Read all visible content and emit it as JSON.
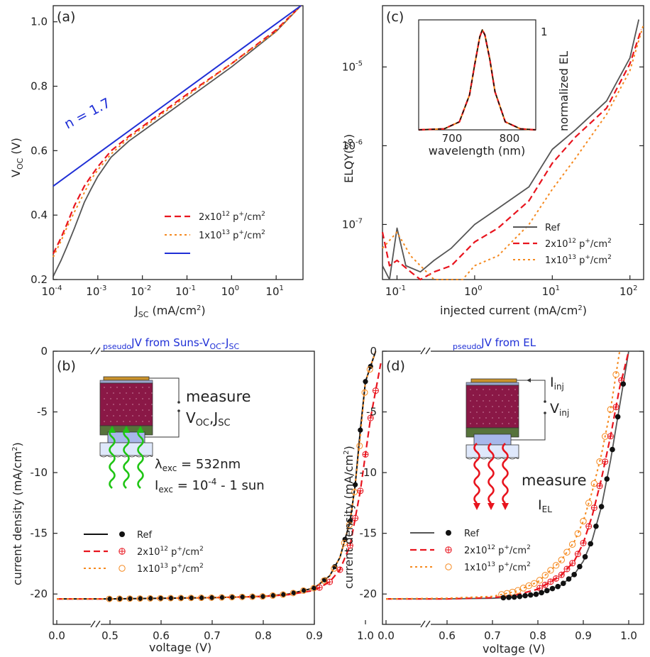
{
  "colors": {
    "ref": "#333333",
    "ref_gray": "#555555",
    "p2e12": "#e8141e",
    "p1e13": "#f5891f",
    "fit": "#1f2fd6",
    "blue_title": "#1f2fd6",
    "perovskite": "#8a1846",
    "htl": "#57733b",
    "ito": "#b8c9ef",
    "glass": "#dfe8fb",
    "electrode": "#c9922c",
    "green_light": "#1fc514",
    "red_light": "#e8141e"
  },
  "panel_a": {
    "label": "(a)",
    "xlabel_main": "J",
    "xlabel_sub": "SC",
    "xlabel_unit": "(mA/cm",
    "ylabel_main": "V",
    "ylabel_sub": "OC",
    "ylabel_unit": "(V)",
    "xticks": [
      "10",
      "10",
      "10",
      "10",
      "10",
      "10"
    ],
    "xtick_exps": [
      "-4",
      "-3",
      "-2",
      "-1",
      "0",
      "1"
    ],
    "yticks": [
      "0.2",
      "0.4",
      "0.6",
      "0.8",
      "1.0"
    ],
    "fit_label": "n = 1.7",
    "legend": [
      "2x10",
      "1x10",
      ""
    ],
    "legend_exp": [
      "12",
      "13"
    ],
    "legend_unit": "p",
    "legend_tail": "/cm"
  },
  "panel_b": {
    "label": "(b)",
    "title_sub": "pseudo",
    "title_main": "JV from Suns-V",
    "title_sub2": "OC",
    "title_dash": "-J",
    "title_sub3": "SC",
    "xlabel": "voltage (V)",
    "ylabel": "current density (mA/cm",
    "xticks": [
      "0.0",
      "0.5",
      "0.6",
      "0.7",
      "0.8",
      "0.9",
      "1.0"
    ],
    "yticks": [
      "0",
      "-5",
      "-10",
      "-15",
      "-20"
    ],
    "measure": "measure",
    "measure_vals": "V",
    "measure_oc": "OC",
    "measure_jsc": ",J",
    "measure_sc": "SC",
    "lambda": "λ",
    "lambda_sub": "exc",
    "lambda_val": " = 532nm",
    "iexc": "I",
    "iexc_sub": "exc",
    "iexc_val": " = 10",
    "iexc_exp": "-4",
    "iexc_tail": " - 1 sun",
    "legend": [
      "Ref",
      "2x10",
      "1x10"
    ],
    "legend_exp": [
      "12",
      "13"
    ]
  },
  "panel_c": {
    "label": "(c)",
    "xlabel": "injected current (mA/cm",
    "ylabel": "ELQY(%)",
    "xticks": [
      "10",
      "10",
      "10",
      "10"
    ],
    "xtick_exps": [
      "-1",
      "0",
      "1",
      "2"
    ],
    "yticks": [
      "10",
      "10",
      "10"
    ],
    "ytick_exps": [
      "-7",
      "-6",
      "-5"
    ],
    "inset_xlabel": "wavelength (nm)",
    "inset_xticks": [
      "700",
      "800"
    ],
    "inset_ytick": "1",
    "inset_right_label": "normalized  EL",
    "legend": [
      "Ref",
      "2x10",
      "1x10"
    ],
    "legend_exp": [
      "12",
      "13"
    ]
  },
  "panel_d": {
    "label": "(d)",
    "title_sub": "pseudo",
    "title_main": "JV from EL",
    "xlabel": "voltage (V)",
    "ylabel": "current density (mA/cm",
    "xticks": [
      "0.0",
      "0.6",
      "0.7",
      "0.8",
      "0.9",
      "1.0"
    ],
    "yticks": [
      "0",
      "-5",
      "-10",
      "-15",
      "-20"
    ],
    "iinj": "I",
    "iinj_sub": "inj",
    "vinj": "V",
    "vinj_sub": "inj",
    "measure": "measure",
    "iel": "I",
    "iel_sub": "EL",
    "legend": [
      "Ref",
      "2x10",
      "1x10"
    ],
    "legend_exp": [
      "12",
      "13"
    ]
  },
  "chart_data": [
    {
      "panel": "a",
      "type": "line",
      "xlabel": "JSC (mA/cm2)",
      "ylabel": "VOC (V)",
      "xscale": "log",
      "xlim": [
        0.0001,
        40
      ],
      "ylim": [
        0.2,
        1.05
      ],
      "series": [
        {
          "name": "Ref",
          "x": [
            0.0001,
            0.00015,
            0.0002,
            0.0003,
            0.0005,
            0.0007,
            0.001,
            0.002,
            0.005,
            0.01,
            0.1,
            1,
            10,
            36
          ],
          "y": [
            0.21,
            0.26,
            0.3,
            0.36,
            0.44,
            0.48,
            0.52,
            0.58,
            0.63,
            0.66,
            0.76,
            0.86,
            0.97,
            1.05
          ]
        },
        {
          "name": "2x10^12 p+/cm2",
          "x": [
            0.0001,
            0.00015,
            0.0002,
            0.0003,
            0.0005,
            0.0007,
            0.001,
            0.002,
            0.005,
            0.01,
            0.1,
            1,
            10,
            36
          ],
          "y": [
            0.28,
            0.33,
            0.37,
            0.43,
            0.49,
            0.52,
            0.55,
            0.6,
            0.645,
            0.675,
            0.775,
            0.87,
            0.975,
            1.05
          ]
        },
        {
          "name": "1x10^13 p+/cm2",
          "x": [
            0.0001,
            0.00015,
            0.0002,
            0.0003,
            0.0005,
            0.0007,
            0.001,
            0.002,
            0.005,
            0.01,
            0.1,
            1,
            10,
            36
          ],
          "y": [
            0.27,
            0.32,
            0.36,
            0.41,
            0.47,
            0.51,
            0.54,
            0.59,
            0.64,
            0.67,
            0.77,
            0.87,
            0.97,
            1.05
          ]
        },
        {
          "name": "fit n = 1.7",
          "x": [
            0.0001,
            36
          ],
          "y": [
            0.49,
            1.05
          ]
        }
      ]
    },
    {
      "panel": "b",
      "type": "line",
      "xlabel": "voltage (V)",
      "ylabel": "current density (mA/cm2)",
      "xlim": [
        0.0,
        1.05
      ],
      "ylim": [
        -22.5,
        0
      ],
      "series": [
        {
          "name": "Ref",
          "x": [
            0.0,
            0.5,
            0.6,
            0.7,
            0.8,
            0.85,
            0.9,
            0.93,
            0.95,
            0.97,
            0.98,
            0.99,
            1.0,
            1.02
          ],
          "y": [
            -20.4,
            -20.4,
            -20.35,
            -20.3,
            -20.2,
            -20.0,
            -19.5,
            -18.5,
            -17.0,
            -14.0,
            -11.0,
            -6.5,
            -2.5,
            0.0
          ]
        },
        {
          "name": "2x10^12 p+/cm2",
          "x": [
            0.0,
            0.5,
            0.6,
            0.7,
            0.8,
            0.85,
            0.9,
            0.93,
            0.95,
            0.97,
            0.99,
            1.01,
            1.03
          ],
          "y": [
            -20.4,
            -20.4,
            -20.35,
            -20.3,
            -20.2,
            -20.05,
            -19.7,
            -19.0,
            -18.0,
            -16.0,
            -11.5,
            -5.5,
            -1.0
          ]
        },
        {
          "name": "1x10^13 p+/cm2",
          "x": [
            0.0,
            0.5,
            0.6,
            0.7,
            0.8,
            0.85,
            0.9,
            0.93,
            0.95,
            0.97,
            0.98,
            0.99,
            1.0,
            1.02
          ],
          "y": [
            -20.4,
            -20.4,
            -20.35,
            -20.3,
            -20.2,
            -20.0,
            -19.5,
            -18.5,
            -17.0,
            -14.0,
            -11.0,
            -7.0,
            -2.5,
            0.0
          ]
        }
      ]
    },
    {
      "panel": "c",
      "type": "line",
      "xlabel": "injected current (mA/cm2)",
      "ylabel": "ELQY(%)",
      "xscale": "log",
      "yscale": "log",
      "xlim": [
        0.065,
        150
      ],
      "ylim": [
        2e-08,
        6e-05
      ],
      "series": [
        {
          "name": "Ref",
          "x": [
            0.065,
            0.08,
            0.1,
            0.13,
            0.2,
            0.3,
            0.5,
            1,
            2,
            5,
            10,
            20,
            50,
            100,
            130
          ],
          "y": [
            3e-08,
            2e-08,
            9e-08,
            3e-08,
            2.5e-08,
            3.5e-08,
            5e-08,
            1e-07,
            1.6e-07,
            3e-07,
            9e-07,
            1.6e-06,
            3.7e-06,
            1.3e-05,
            4e-05
          ]
        },
        {
          "name": "2x10^12 p+/cm2",
          "x": [
            0.065,
            0.08,
            0.1,
            0.15,
            0.2,
            0.3,
            0.5,
            1,
            2,
            5,
            10,
            20,
            50,
            100,
            140
          ],
          "y": [
            8e-08,
            3e-08,
            3.5e-08,
            2.5e-08,
            2e-08,
            2.5e-08,
            3e-08,
            6e-08,
            9e-08,
            2e-07,
            6e-07,
            1.3e-06,
            3e-06,
            1.1e-05,
            3e-05
          ]
        },
        {
          "name": "1x10^13 p+/cm2",
          "x": [
            0.065,
            0.1,
            0.15,
            0.3,
            0.7,
            1,
            2,
            5,
            10,
            20,
            50,
            100,
            150
          ],
          "y": [
            5e-08,
            8e-08,
            4e-08,
            2e-08,
            2e-08,
            3e-08,
            4e-08,
            1e-07,
            2.8e-07,
            7e-07,
            2.5e-06,
            9e-06,
            3.5e-05
          ]
        }
      ]
    },
    {
      "panel": "c-inset",
      "type": "line",
      "xlabel": "wavelength (nm)",
      "ylabel": "normalized EL",
      "xlim": [
        650,
        880
      ],
      "ylim": [
        0,
        1.1
      ],
      "series": [
        {
          "name": "Ref",
          "x": [
            650,
            700,
            730,
            750,
            760,
            770,
            775,
            780,
            790,
            800,
            820,
            850,
            880
          ],
          "y": [
            0,
            0.01,
            0.08,
            0.35,
            0.65,
            0.93,
            1.0,
            0.95,
            0.7,
            0.38,
            0.08,
            0.01,
            0
          ]
        },
        {
          "name": "2x10^12 p+/cm2",
          "x": [
            650,
            700,
            730,
            750,
            760,
            770,
            775,
            780,
            790,
            800,
            820,
            850,
            880
          ],
          "y": [
            0,
            0.01,
            0.08,
            0.35,
            0.65,
            0.93,
            1.0,
            0.95,
            0.7,
            0.38,
            0.08,
            0.01,
            0
          ]
        },
        {
          "name": "1x10^13 p+/cm2",
          "x": [
            650,
            700,
            730,
            750,
            760,
            770,
            775,
            780,
            790,
            800,
            820,
            850,
            880
          ],
          "y": [
            0,
            0.01,
            0.08,
            0.35,
            0.65,
            0.93,
            1.0,
            0.95,
            0.7,
            0.38,
            0.08,
            0.01,
            0
          ]
        }
      ]
    },
    {
      "panel": "d",
      "type": "line",
      "xlabel": "voltage (V)",
      "ylabel": "current density (mA/cm2)",
      "xlim": [
        0.0,
        1.03
      ],
      "ylim": [
        -22.5,
        0
      ],
      "series": [
        {
          "name": "Ref",
          "x": [
            0.0,
            0.6,
            0.7,
            0.75,
            0.8,
            0.85,
            0.88,
            0.9,
            0.92,
            0.94,
            0.96,
            0.98,
            1.0
          ],
          "y": [
            -20.4,
            -20.4,
            -20.35,
            -20.25,
            -20.0,
            -19.3,
            -18.4,
            -17.3,
            -15.5,
            -12.8,
            -9.0,
            -4.5,
            0.0
          ]
        },
        {
          "name": "2x10^12 p+/cm2",
          "x": [
            0.0,
            0.6,
            0.7,
            0.75,
            0.8,
            0.85,
            0.88,
            0.9,
            0.92,
            0.94,
            0.96,
            0.98,
            1.0
          ],
          "y": [
            -20.4,
            -20.4,
            -20.3,
            -20.1,
            -19.6,
            -18.5,
            -17.3,
            -15.8,
            -13.5,
            -10.5,
            -7.0,
            -3.0,
            0.0
          ]
        },
        {
          "name": "1x10^13 p+/cm2",
          "x": [
            0.0,
            0.6,
            0.7,
            0.75,
            0.8,
            0.85,
            0.88,
            0.9,
            0.92,
            0.94,
            0.96,
            0.98
          ],
          "y": [
            -20.4,
            -20.35,
            -20.2,
            -19.8,
            -19.0,
            -17.3,
            -15.7,
            -14.0,
            -11.5,
            -8.5,
            -4.8,
            0.0
          ]
        }
      ]
    }
  ]
}
